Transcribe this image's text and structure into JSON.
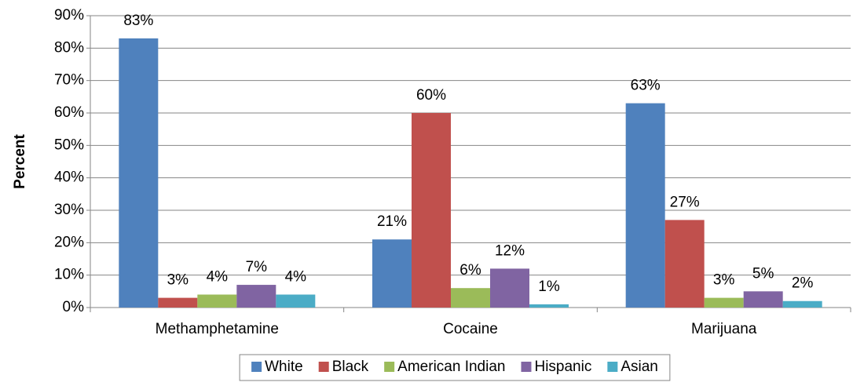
{
  "chart_data": {
    "type": "bar",
    "y_label": "Percent",
    "categories": [
      "Methamphetamine",
      "Cocaine",
      "Marijuana"
    ],
    "series": [
      {
        "name": "White",
        "color": "#4f81bd",
        "values": [
          83,
          21,
          63
        ],
        "value_labels": [
          "83%",
          "21%",
          "63%"
        ]
      },
      {
        "name": "Black",
        "color": "#c0504d",
        "values": [
          3,
          60,
          27
        ],
        "value_labels": [
          "3%",
          "60%",
          "27%"
        ]
      },
      {
        "name": "American Indian",
        "color": "#9bbb59",
        "values": [
          4,
          6,
          3
        ],
        "value_labels": [
          "4%",
          "6%",
          "3%"
        ]
      },
      {
        "name": "Hispanic",
        "color": "#8064a2",
        "values": [
          7,
          12,
          5
        ],
        "value_labels": [
          "7%",
          "12%",
          "5%"
        ]
      },
      {
        "name": "Asian",
        "color": "#4bacc6",
        "values": [
          4,
          1,
          2
        ],
        "value_labels": [
          "4%",
          "1%",
          "2%"
        ]
      }
    ],
    "ylim": [
      0,
      90
    ],
    "yticks": [
      {
        "value": 0,
        "label": "0%"
      },
      {
        "value": 10,
        "label": "10%"
      },
      {
        "value": 20,
        "label": "20%"
      },
      {
        "value": 30,
        "label": "30%"
      },
      {
        "value": 40,
        "label": "40%"
      },
      {
        "value": 50,
        "label": "50%"
      },
      {
        "value": 60,
        "label": "60%"
      },
      {
        "value": 70,
        "label": "70%"
      },
      {
        "value": 80,
        "label": "80%"
      },
      {
        "value": 90,
        "label": "90%"
      }
    ],
    "grid": true,
    "legend": "bottom"
  }
}
